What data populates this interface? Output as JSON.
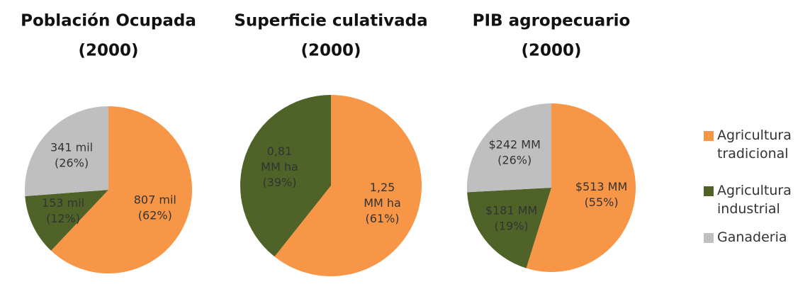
{
  "chart_data": [
    {
      "type": "pie",
      "title": [
        "Población Ocupada",
        "(2000)"
      ],
      "categories": [
        "Agricultura tradicional",
        "Agricultura industrial",
        "Ganaderia"
      ],
      "values": [
        807,
        153,
        341
      ],
      "value_labels": [
        [
          "807 mil",
          "(62%)"
        ],
        [
          "153 mil",
          "(12%)"
        ],
        [
          "341 mil",
          "(26%)"
        ]
      ],
      "colors": [
        "#f79646",
        "#4f6228",
        "#bfbfbf"
      ],
      "legend": "right"
    },
    {
      "type": "pie",
      "title": [
        "Superficie culativada",
        "(2000)"
      ],
      "categories": [
        "Agricultura tradicional",
        "Agricultura industrial"
      ],
      "values": [
        1.25,
        0.81
      ],
      "value_labels": [
        [
          "1,25",
          "MM ha",
          "(61%)"
        ],
        [
          "0,81",
          "MM ha",
          "(39%)"
        ]
      ],
      "colors": [
        "#f79646",
        "#4f6228"
      ]
    },
    {
      "type": "pie",
      "title": [
        "PIB agropecuario",
        "(2000)"
      ],
      "categories": [
        "Agricultura tradicional",
        "Agricultura industrial",
        "Ganaderia"
      ],
      "values": [
        513,
        181,
        242
      ],
      "value_labels": [
        [
          "$513 MM",
          "(55%)"
        ],
        [
          "$181 MM",
          "(19%)"
        ],
        [
          "$242 MM",
          "(26%)"
        ]
      ],
      "colors": [
        "#f79646",
        "#4f6228",
        "#bfbfbf"
      ]
    }
  ]
}
